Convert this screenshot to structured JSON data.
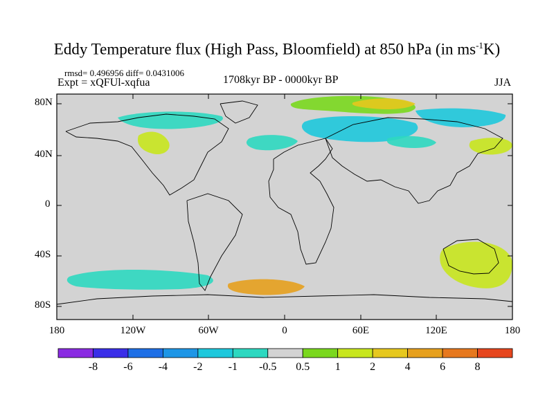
{
  "title": {
    "text": "Eddy Temperature flux (High Pass, Bloomfield) at 850 hPa (in ms",
    "sup": "-1",
    "tail": "K)"
  },
  "stats": "rmsd= 0.496956 diff= 0.0431006",
  "expt": "Expt = xQFUl-xqfua",
  "period": "1708kyr BP - 0000kyr BP",
  "season": "JJA",
  "map": {
    "lat_labels": [
      "80N",
      "40N",
      "0",
      "40S",
      "80S"
    ],
    "lon_labels": [
      "180",
      "120W",
      "60W",
      "0",
      "60E",
      "120E",
      "180"
    ],
    "land_fill": "#d3d3d3",
    "coast_color": "#000000"
  },
  "colorbar": {
    "labels": [
      "-8",
      "-6",
      "-4",
      "-2",
      "-1",
      "-0.5",
      "0.5",
      "1",
      "2",
      "4",
      "6",
      "8"
    ],
    "colors": [
      "#8a2be2",
      "#3a2ee8",
      "#1e6fe6",
      "#1e96e6",
      "#1ec8dc",
      "#2dd8c0",
      "#d3d3d3",
      "#7ad81e",
      "#c8e61e",
      "#e6c81e",
      "#e6a01e",
      "#e6781e",
      "#e6461e"
    ]
  },
  "anomalies": [
    {
      "region": "arctic-ne-atlantic",
      "color": "#7ad81e"
    },
    {
      "region": "arctic-siberia",
      "color": "#e6c81e"
    },
    {
      "region": "n-canada",
      "color": "#2dd8c0"
    },
    {
      "region": "ne-atlantic",
      "color": "#2dd8c0"
    },
    {
      "region": "scandinavia",
      "color": "#1ec8dc"
    },
    {
      "region": "n-pacific-west",
      "color": "#1ec8dc"
    },
    {
      "region": "w-north-america",
      "color": "#c8e61e"
    },
    {
      "region": "central-asia",
      "color": "#2dd8c0"
    },
    {
      "region": "nw-pacific",
      "color": "#c8e61e"
    },
    {
      "region": "s-pacific",
      "color": "#2dd8c0"
    },
    {
      "region": "southern-ocean",
      "color": "#e6a01e"
    },
    {
      "region": "australia-sw",
      "color": "#c8e61e"
    }
  ]
}
